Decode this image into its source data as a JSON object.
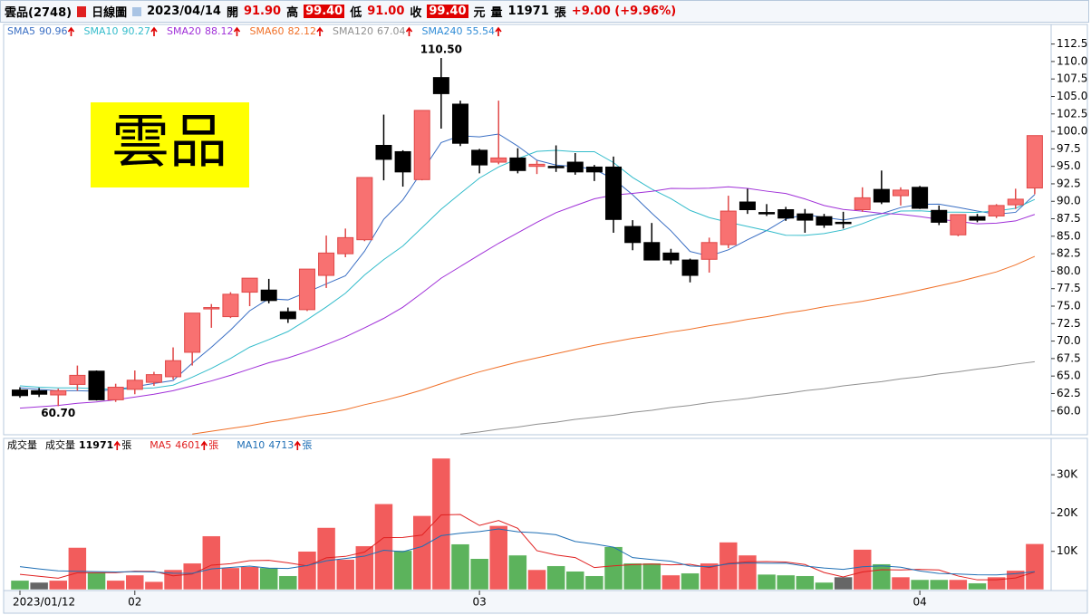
{
  "header": {
    "stock": "雲品(2748)",
    "period": "日線圖",
    "date": "2023/04/14",
    "open_label": "開",
    "open": "91.90",
    "high_label": "高",
    "high": "99.40",
    "low_label": "低",
    "low": "91.00",
    "close_label": "收",
    "close": "99.40",
    "currency": "元",
    "volume_label": "量",
    "volume": "11971",
    "volume_unit": "張",
    "change": "+9.00 (+9.96%)"
  },
  "chart_data": [
    {
      "type": "candlestick",
      "label": "雲品",
      "up_color": "#f87171",
      "down_color": "#000000",
      "max_label": "110.50",
      "min_label": "60.70",
      "open": [
        63.0,
        62.9,
        62.3,
        63.8,
        65.7,
        61.6,
        63.1,
        64.1,
        64.9,
        68.4,
        74.6,
        73.5,
        77.0,
        77.3,
        74.2,
        74.5,
        79.4,
        82.5,
        84.5,
        98.0,
        97.1,
        93.1,
        107.7,
        103.9,
        97.3,
        95.6,
        96.2,
        95.0,
        95.0,
        95.6,
        94.9,
        94.9,
        86.4,
        84.1,
        82.6,
        81.6,
        81.7,
        83.8,
        89.9,
        88.4,
        88.8,
        88.2,
        87.8,
        87.0,
        88.8,
        91.7,
        90.8,
        92.0,
        88.7,
        85.2,
        87.8,
        87.9,
        89.5,
        91.9
      ],
      "high": [
        63.4,
        63.3,
        63.2,
        66.5,
        65.8,
        63.9,
        65.8,
        65.6,
        69.1,
        74.0,
        75.3,
        77.0,
        79.0,
        78.9,
        74.8,
        80.3,
        85.1,
        86.1,
        93.4,
        102.4,
        97.3,
        103.0,
        110.5,
        104.4,
        97.5,
        104.4,
        97.6,
        95.8,
        98.0,
        96.9,
        95.2,
        96.4,
        87.3,
        86.9,
        83.2,
        81.8,
        84.8,
        90.8,
        91.8,
        89.6,
        89.2,
        88.9,
        88.2,
        88.5,
        92.0,
        94.4,
        92.0,
        92.2,
        89.4,
        88.1,
        88.2,
        89.6,
        91.8,
        99.4
      ],
      "low": [
        61.9,
        62.0,
        60.7,
        62.9,
        61.5,
        61.3,
        62.4,
        63.6,
        64.5,
        66.5,
        71.9,
        73.3,
        75.0,
        75.4,
        72.6,
        74.3,
        77.6,
        82.0,
        84.3,
        93.0,
        92.1,
        93.0,
        100.4,
        97.9,
        94.0,
        95.3,
        94.0,
        93.9,
        94.2,
        93.8,
        92.9,
        85.5,
        83.0,
        81.6,
        81.0,
        78.4,
        79.8,
        83.3,
        88.2,
        87.9,
        87.2,
        85.5,
        86.2,
        86.1,
        88.5,
        89.6,
        89.4,
        88.9,
        86.6,
        85.0,
        87.0,
        87.6,
        88.9,
        91.0
      ],
      "close": [
        62.2,
        62.4,
        62.9,
        65.1,
        61.6,
        63.4,
        64.4,
        65.2,
        67.2,
        74.0,
        74.8,
        76.7,
        79.0,
        75.8,
        73.2,
        80.3,
        82.6,
        84.8,
        93.4,
        96.0,
        94.2,
        103.0,
        105.4,
        98.3,
        95.2,
        96.2,
        94.4,
        95.3,
        94.8,
        94.2,
        94.2,
        87.4,
        84.1,
        81.6,
        81.6,
        79.4,
        84.1,
        88.6,
        88.8,
        88.2,
        87.6,
        87.3,
        86.6,
        86.9,
        90.5,
        89.9,
        91.6,
        89.0,
        87.0,
        88.1,
        87.3,
        89.4,
        90.3,
        99.4
      ],
      "series": [
        {
          "name": "SMA5",
          "color": "#3a6fc4",
          "values": [
            63.3,
            63.1,
            62.9,
            62.9,
            62.84,
            63.08,
            63.48,
            63.94,
            64.36,
            66.84,
            69.12,
            71.58,
            74.34,
            76.06,
            75.9,
            77.0,
            78.18,
            79.34,
            82.86,
            87.42,
            90.2,
            94.28,
            98.4,
            99.38,
            99.22,
            99.62,
            97.9,
            95.88,
            95.18,
            94.98,
            94.58,
            93.18,
            90.94,
            88.3,
            85.78,
            82.82,
            82.16,
            83.06,
            84.5,
            85.82,
            87.46,
            88.1,
            87.7,
            87.32,
            87.78,
            88.24,
            89.1,
            89.58,
            89.6,
            89.12,
            88.6,
            88.16,
            88.42,
            90.96
          ]
        },
        {
          "name": "SMA10",
          "color": "#33bccb",
          "values": [
            63.6,
            63.4,
            63.3,
            63.3,
            63.2,
            63.1,
            63.2,
            63.3,
            63.7,
            64.84,
            66.1,
            67.53,
            69.14,
            70.21,
            71.37,
            73.06,
            74.88,
            76.84,
            79.46,
            81.66,
            83.6,
            86.23,
            88.87,
            91.12,
            93.32,
            94.91,
            96.09,
            97.14,
            97.28,
            97.1,
            97.1,
            95.54,
            93.41,
            91.74,
            90.38,
            88.7,
            87.67,
            87.0,
            86.4,
            85.8,
            85.14,
            85.13,
            85.38,
            85.91,
            86.8,
            87.85,
            88.6,
            88.64,
            88.46,
            88.45,
            88.42,
            88.63,
            89.0,
            90.27
          ]
        },
        {
          "name": "SMA20",
          "color": "#a030d8",
          "values": [
            60.4,
            60.6,
            60.8,
            61.1,
            61.3,
            61.6,
            62.0,
            62.4,
            62.9,
            63.6,
            64.3,
            65.1,
            66.0,
            66.9,
            67.6,
            68.5,
            69.5,
            70.6,
            71.9,
            73.25,
            74.85,
            76.88,
            79.0,
            80.67,
            82.35,
            83.99,
            85.49,
            86.99,
            88.37,
            89.38,
            90.35,
            90.89,
            91.14,
            91.43,
            91.85,
            91.81,
            91.88,
            92.07,
            91.84,
            91.45,
            91.12,
            90.34,
            89.4,
            88.83,
            88.59,
            88.28,
            88.14,
            87.82,
            87.43,
            87.13,
            86.78,
            86.88,
            87.19,
            88.12
          ]
        },
        {
          "name": "SMA60",
          "color": "#f07028",
          "values": [
            null,
            null,
            null,
            null,
            null,
            null,
            null,
            null,
            null,
            56.7,
            57.1,
            57.5,
            57.9,
            58.4,
            58.8,
            59.3,
            59.7,
            60.2,
            60.9,
            61.5,
            62.2,
            63.0,
            63.9,
            64.8,
            65.6,
            66.3,
            67.0,
            67.6,
            68.2,
            68.8,
            69.4,
            69.9,
            70.4,
            70.8,
            71.3,
            71.7,
            72.2,
            72.6,
            73.1,
            73.5,
            74.0,
            74.4,
            74.9,
            75.3,
            75.7,
            76.2,
            76.7,
            77.3,
            77.9,
            78.5,
            79.2,
            79.9,
            80.9,
            82.12
          ]
        },
        {
          "name": "SMA120",
          "color": "#909090",
          "values": [
            null,
            null,
            null,
            null,
            null,
            null,
            null,
            null,
            null,
            null,
            null,
            null,
            null,
            null,
            null,
            null,
            null,
            null,
            null,
            null,
            null,
            null,
            null,
            56.7,
            57.0,
            57.4,
            57.7,
            58.1,
            58.4,
            58.8,
            59.1,
            59.4,
            59.8,
            60.1,
            60.5,
            60.8,
            61.2,
            61.5,
            61.8,
            62.2,
            62.5,
            62.9,
            63.2,
            63.6,
            63.9,
            64.2,
            64.6,
            64.9,
            65.3,
            65.6,
            66.0,
            66.3,
            66.7,
            67.04
          ]
        },
        {
          "name": "SMA240",
          "color": "#2e8bd6",
          "values": [
            null,
            null,
            null,
            null,
            null,
            null,
            null,
            null,
            null,
            null,
            null,
            null,
            null,
            null,
            null,
            null,
            null,
            null,
            null,
            null,
            null,
            null,
            null,
            null,
            null,
            null,
            null,
            null,
            null,
            null,
            null,
            null,
            null,
            null,
            null,
            null,
            null,
            null,
            null,
            null,
            null,
            null,
            null,
            null,
            null,
            null,
            null,
            null,
            null,
            null,
            null,
            null,
            null,
            55.54
          ]
        }
      ],
      "ylim": [
        56.6,
        115.3
      ],
      "yticks": [
        {
          "value": 60,
          "label": "60.0"
        },
        {
          "value": 62.5,
          "label": "62.5"
        },
        {
          "value": 65,
          "label": "65.0"
        },
        {
          "value": 67.5,
          "label": "67.5"
        },
        {
          "value": 70,
          "label": "70.0"
        },
        {
          "value": 72.5,
          "label": "72.5"
        },
        {
          "value": 75,
          "label": "75.0"
        },
        {
          "value": 77.5,
          "label": "77.5"
        },
        {
          "value": 80,
          "label": "80.0"
        },
        {
          "value": 82.5,
          "label": "82.5"
        },
        {
          "value": 85,
          "label": "85.0"
        },
        {
          "value": 87.5,
          "label": "87.5"
        },
        {
          "value": 90,
          "label": "90.0"
        },
        {
          "value": 92.5,
          "label": "92.5"
        },
        {
          "value": 95,
          "label": "95.0"
        },
        {
          "value": 97.5,
          "label": "97.5"
        },
        {
          "value": 100,
          "label": "100.0"
        },
        {
          "value": 102.5,
          "label": "102.5"
        },
        {
          "value": 105,
          "label": "105.0"
        },
        {
          "value": 107.5,
          "label": "107.5"
        },
        {
          "value": 110,
          "label": "110.0"
        },
        {
          "value": 112.5,
          "label": "112.5"
        }
      ]
    },
    {
      "type": "bar",
      "title": "成交量",
      "unit": "張",
      "categories": [
        "2023/01/12",
        null,
        null,
        null,
        null,
        null,
        "02",
        null,
        null,
        null,
        null,
        null,
        null,
        null,
        null,
        null,
        null,
        null,
        null,
        null,
        null,
        null,
        null,
        null,
        "03",
        null,
        null,
        null,
        null,
        null,
        null,
        null,
        null,
        null,
        null,
        null,
        null,
        null,
        null,
        null,
        null,
        null,
        null,
        null,
        null,
        null,
        null,
        "04",
        null,
        null,
        null,
        null,
        null,
        null
      ],
      "series": [
        {
          "name": "成交量",
          "color": "#000000",
          "values": [
            2400,
            1900,
            2400,
            11000,
            4500,
            2400,
            3800,
            2100,
            5200,
            6900,
            14000,
            5700,
            6000,
            5700,
            3600,
            10000,
            16200,
            7900,
            11400,
            22400,
            10200,
            19300,
            34300,
            11900,
            8100,
            16700,
            9000,
            5200,
            6200,
            4800,
            3600,
            11200,
            6900,
            6900,
            3800,
            4300,
            6900,
            12400,
            9000,
            4000,
            3800,
            3600,
            1900,
            3300,
            10500,
            6700,
            3300,
            2600,
            2600,
            2600,
            1700,
            3300,
            5000,
            11971
          ],
          "colors": [
            "#5cb35c",
            "#666666",
            "#f25c5c",
            "#f25c5c",
            "#5cb35c",
            "#f25c5c",
            "#f25c5c",
            "#f25c5c",
            "#f25c5c",
            "#f25c5c",
            "#f25c5c",
            "#f25c5c",
            "#f25c5c",
            "#5cb35c",
            "#5cb35c",
            "#f25c5c",
            "#f25c5c",
            "#f25c5c",
            "#f25c5c",
            "#f25c5c",
            "#5cb35c",
            "#f25c5c",
            "#f25c5c",
            "#5cb35c",
            "#5cb35c",
            "#f25c5c",
            "#5cb35c",
            "#f25c5c",
            "#5cb35c",
            "#5cb35c",
            "#5cb35c",
            "#5cb35c",
            "#5cb35c",
            "#5cb35c",
            "#f25c5c",
            "#5cb35c",
            "#f25c5c",
            "#f25c5c",
            "#f25c5c",
            "#5cb35c",
            "#5cb35c",
            "#5cb35c",
            "#5cb35c",
            "#666666",
            "#f25c5c",
            "#5cb35c",
            "#f25c5c",
            "#5cb35c",
            "#5cb35c",
            "#f25c5c",
            "#5cb35c",
            "#f25c5c",
            "#f25c5c",
            "#f25c5c"
          ]
        },
        {
          "name": "MA5",
          "color": "#e02020",
          "values": [
            4000,
            3500,
            3000,
            4400,
            4440,
            4440,
            4820,
            4760,
            3600,
            4080,
            6400,
            6780,
            7560,
            7660,
            7000,
            6200,
            8300,
            8680,
            9820,
            13580,
            13620,
            14240,
            19520,
            19620,
            16760,
            18060,
            16000,
            10180,
            9040,
            8380,
            5760,
            6200,
            6540,
            6680,
            6480,
            6620,
            5760,
            6860,
            7280,
            7320,
            7220,
            6560,
            4460,
            3320,
            4620,
            5200,
            5140,
            5280,
            5140,
            3560,
            2560,
            2560,
            3040,
            4601
          ]
        },
        {
          "name": "MA10",
          "color": "#1f6fb5",
          "values": [
            6000,
            5400,
            4900,
            4800,
            4700,
            4600,
            4700,
            4600,
            4300,
            4260,
            5420,
            5800,
            6160,
            5630,
            5540,
            6300,
            7540,
            8120,
            8740,
            10290,
            9910,
            11270,
            14100,
            14720,
            15170,
            15840,
            15120,
            14850,
            14330,
            12570,
            11910,
            11100,
            8360,
            7860,
            7430,
            6190,
            5980,
            6700,
            6980,
            6900,
            6920,
            6160,
            5660,
            5300,
            5970,
            6210,
            5850,
            4870,
            4230,
            4090,
            3880,
            3850,
            4160,
            4713
          ]
        }
      ],
      "ylim": [
        0,
        39500
      ],
      "yticks": [
        {
          "value": 10000,
          "label": "10K"
        },
        {
          "value": 20000,
          "label": "20K"
        },
        {
          "value": 30000,
          "label": "30K"
        }
      ]
    }
  ]
}
